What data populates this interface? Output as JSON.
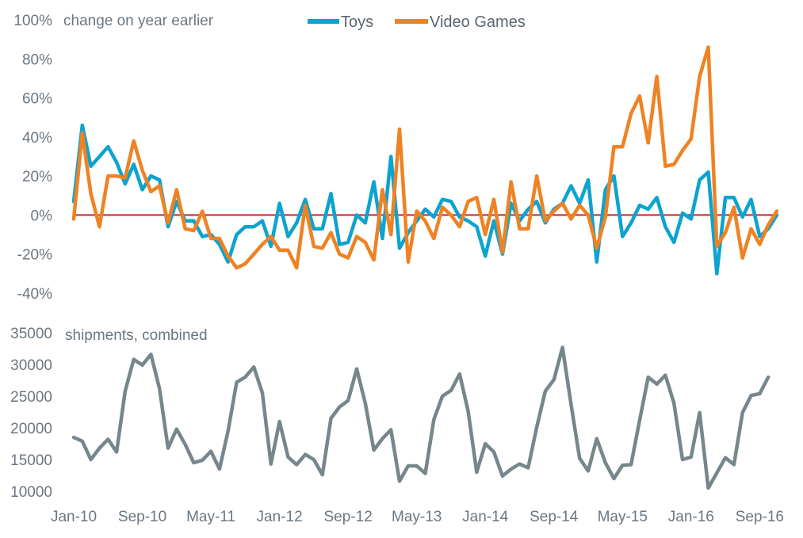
{
  "chart_data": [
    {
      "type": "line",
      "title": "change on year earlier",
      "x_start": "Jan-10",
      "x_step": "month",
      "xtick_labels": [
        "Jan-10",
        "Sep-10",
        "May-11",
        "Jan-12",
        "Sep-12",
        "May-13",
        "Jan-14",
        "Sep-14",
        "May-15",
        "Jan-16",
        "Sep-16"
      ],
      "ylim": [
        -40,
        100
      ],
      "yticks": [
        -40,
        -20,
        0,
        20,
        40,
        60,
        80,
        100
      ],
      "ytick_labels": [
        "-40%",
        "-20%",
        "0%",
        "20%",
        "40%",
        "60%",
        "80%",
        "100%"
      ],
      "reference_line": 0,
      "reference_color": "#c0272d",
      "series": [
        {
          "name": "Toys",
          "color": "#0da3cf",
          "values": [
            7,
            46,
            25,
            30,
            35,
            27,
            16,
            26,
            13,
            20,
            18,
            -6,
            7,
            -3,
            -3,
            -11,
            -10,
            -15,
            -24,
            -10,
            -6,
            -6,
            -3,
            -16,
            6,
            -11,
            -4,
            8,
            -7,
            -7,
            11,
            -15,
            -14,
            0,
            -4,
            17,
            -12,
            30,
            -17,
            -9,
            -3,
            3,
            -1,
            8,
            7,
            -1,
            -3,
            -6,
            -21,
            -3,
            -20,
            6,
            -3,
            3,
            7,
            -4,
            3,
            6,
            15,
            6,
            18,
            -24,
            13,
            20,
            -11,
            -4,
            5,
            3,
            9,
            -6,
            -14,
            1,
            -2,
            18,
            22,
            -30,
            9,
            9,
            -1,
            8,
            -11,
            -7,
            0
          ],
          "data_name": "toys-line"
        },
        {
          "name": "Video Games",
          "color": "#ef8223",
          "values": [
            -2,
            42,
            11,
            -6,
            20,
            20,
            19,
            38,
            23,
            12,
            15,
            -4,
            13,
            -7,
            -8,
            2,
            -12,
            -12,
            -21,
            -27,
            -25,
            -20,
            -15,
            -11,
            -18,
            -18,
            -27,
            5,
            -16,
            -17,
            -9,
            -20,
            -22,
            -11,
            -14,
            -23,
            13,
            -10,
            44,
            -24,
            2,
            -3,
            -12,
            4,
            0,
            -6,
            7,
            9,
            -10,
            8,
            -19,
            17,
            -7,
            -7,
            20,
            -3,
            2,
            6,
            -2,
            5,
            0,
            -17,
            -1,
            35,
            35,
            52,
            61,
            37,
            71,
            25,
            26,
            33,
            39,
            71,
            86,
            -16,
            -9,
            4,
            -22,
            -7,
            -15,
            -5,
            2
          ],
          "data_name": "video-games-line"
        }
      ]
    },
    {
      "type": "line",
      "title": "shipments, combined",
      "ylim": [
        10000,
        35000
      ],
      "yticks": [
        10000,
        15000,
        20000,
        25000,
        30000,
        35000
      ],
      "ytick_labels": [
        "10000",
        "15000",
        "20000",
        "25000",
        "30000",
        "35000"
      ],
      "series": [
        {
          "name": "shipments, combined",
          "color": "#75878c",
          "values": [
            18500,
            17900,
            15000,
            16800,
            18200,
            16200,
            25800,
            30800,
            29900,
            31600,
            26200,
            16800,
            19800,
            17400,
            14500,
            14900,
            16300,
            13500,
            19500,
            27200,
            28000,
            29600,
            25500,
            14300,
            21000,
            15400,
            14200,
            15800,
            15000,
            12600,
            21500,
            23300,
            24300,
            29300,
            23900,
            16500,
            18300,
            19700,
            11600,
            14000,
            14000,
            12800,
            21300,
            25000,
            25900,
            28500,
            22600,
            13000,
            17500,
            16200,
            12400,
            13500,
            14300,
            13700,
            20100,
            25800,
            27600,
            32700,
            23700,
            15200,
            13200,
            18300,
            14500,
            12000,
            14100,
            14200,
            21200,
            28000,
            26900,
            28300,
            23900,
            15000,
            15400,
            22400,
            10500,
            12900,
            15300,
            14200,
            22400,
            25100,
            25400,
            28000
          ]
        }
      ]
    }
  ]
}
